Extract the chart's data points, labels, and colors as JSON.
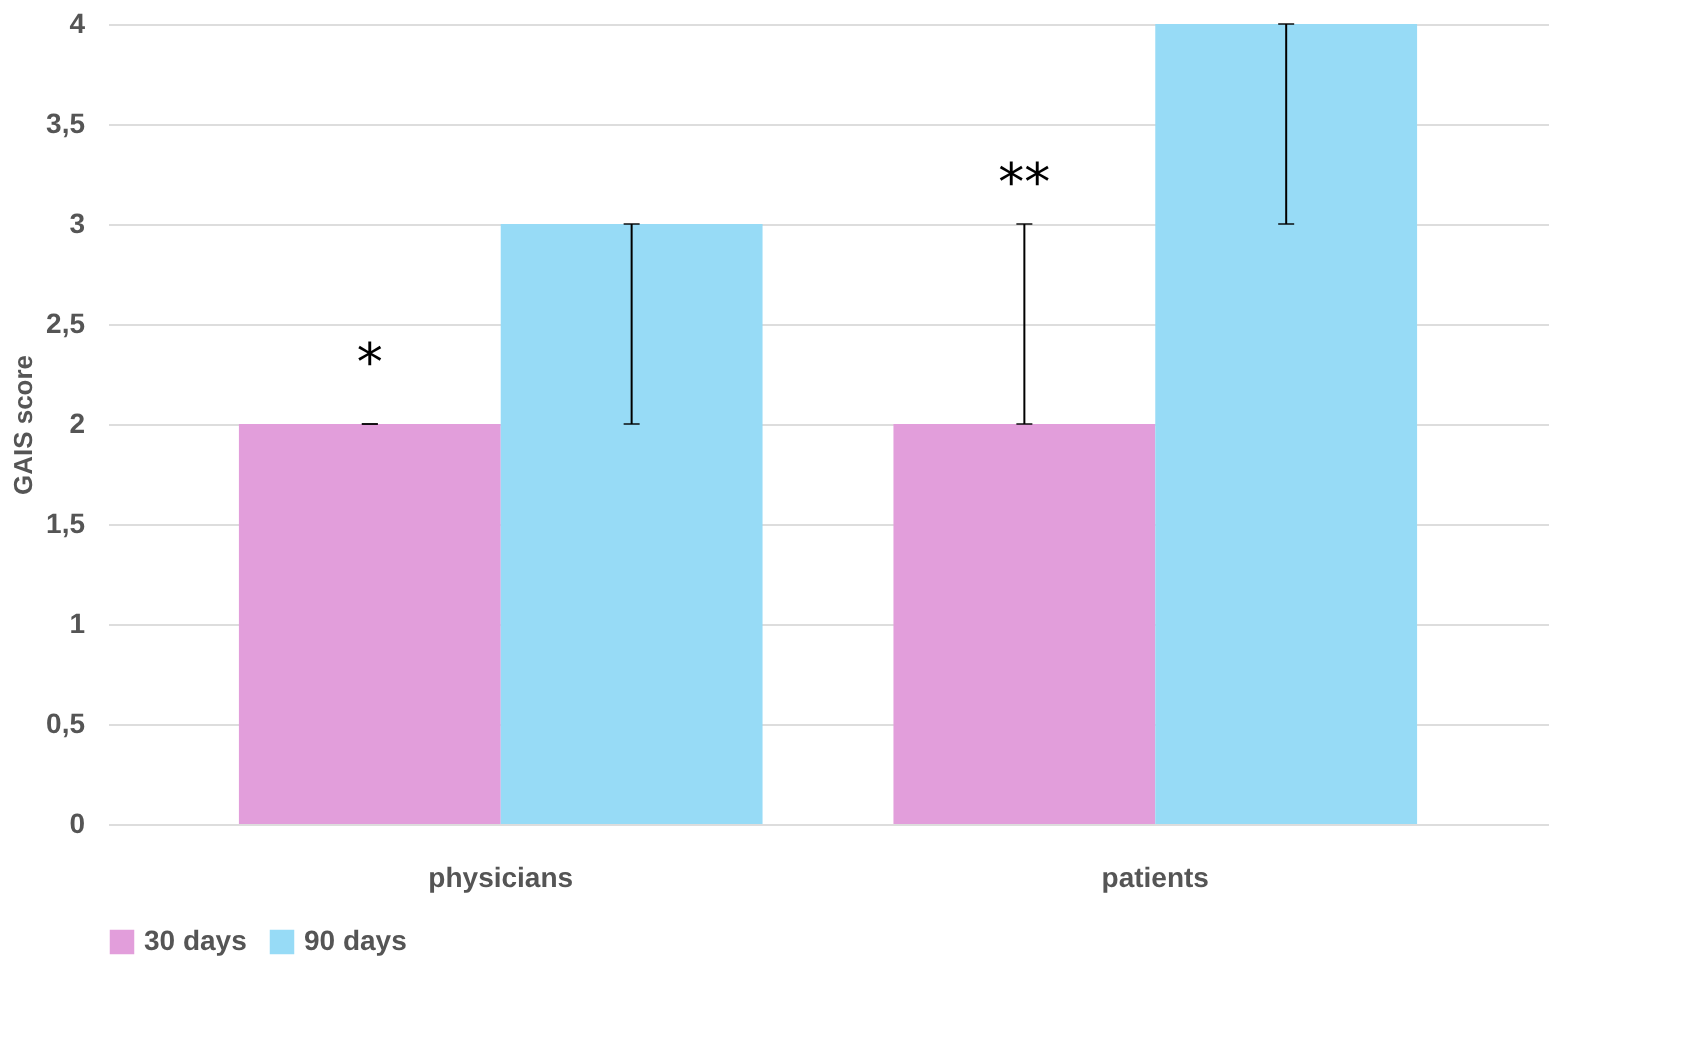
{
  "chart_data": {
    "type": "bar",
    "ylabel": "GAIS score",
    "categories": [
      "physicians",
      "patients"
    ],
    "series": [
      {
        "name": "30 days",
        "color": "#e29edb",
        "values": [
          2,
          2
        ],
        "errors": [
          [
            2,
            2
          ],
          [
            2,
            3
          ]
        ]
      },
      {
        "name": "90 days",
        "color": "#97dbf6",
        "values": [
          3,
          4
        ],
        "errors": [
          [
            2,
            3
          ],
          [
            3,
            4
          ]
        ]
      }
    ],
    "ylim": [
      0,
      4
    ],
    "yticks": [
      0,
      {
        "value": 0.5,
        "label": "0,5"
      },
      1,
      {
        "value": 1.5,
        "label": "1,5"
      },
      2,
      {
        "value": 2.5,
        "label": "2,5"
      },
      3,
      {
        "value": 3.5,
        "label": "3,5"
      },
      4
    ],
    "grid": "y",
    "legend": "bottom",
    "annotations": [
      {
        "text": "*",
        "x": "physicians",
        "y": 2.3
      },
      {
        "text": "**",
        "x": "patients",
        "y": 3.2
      }
    ]
  }
}
